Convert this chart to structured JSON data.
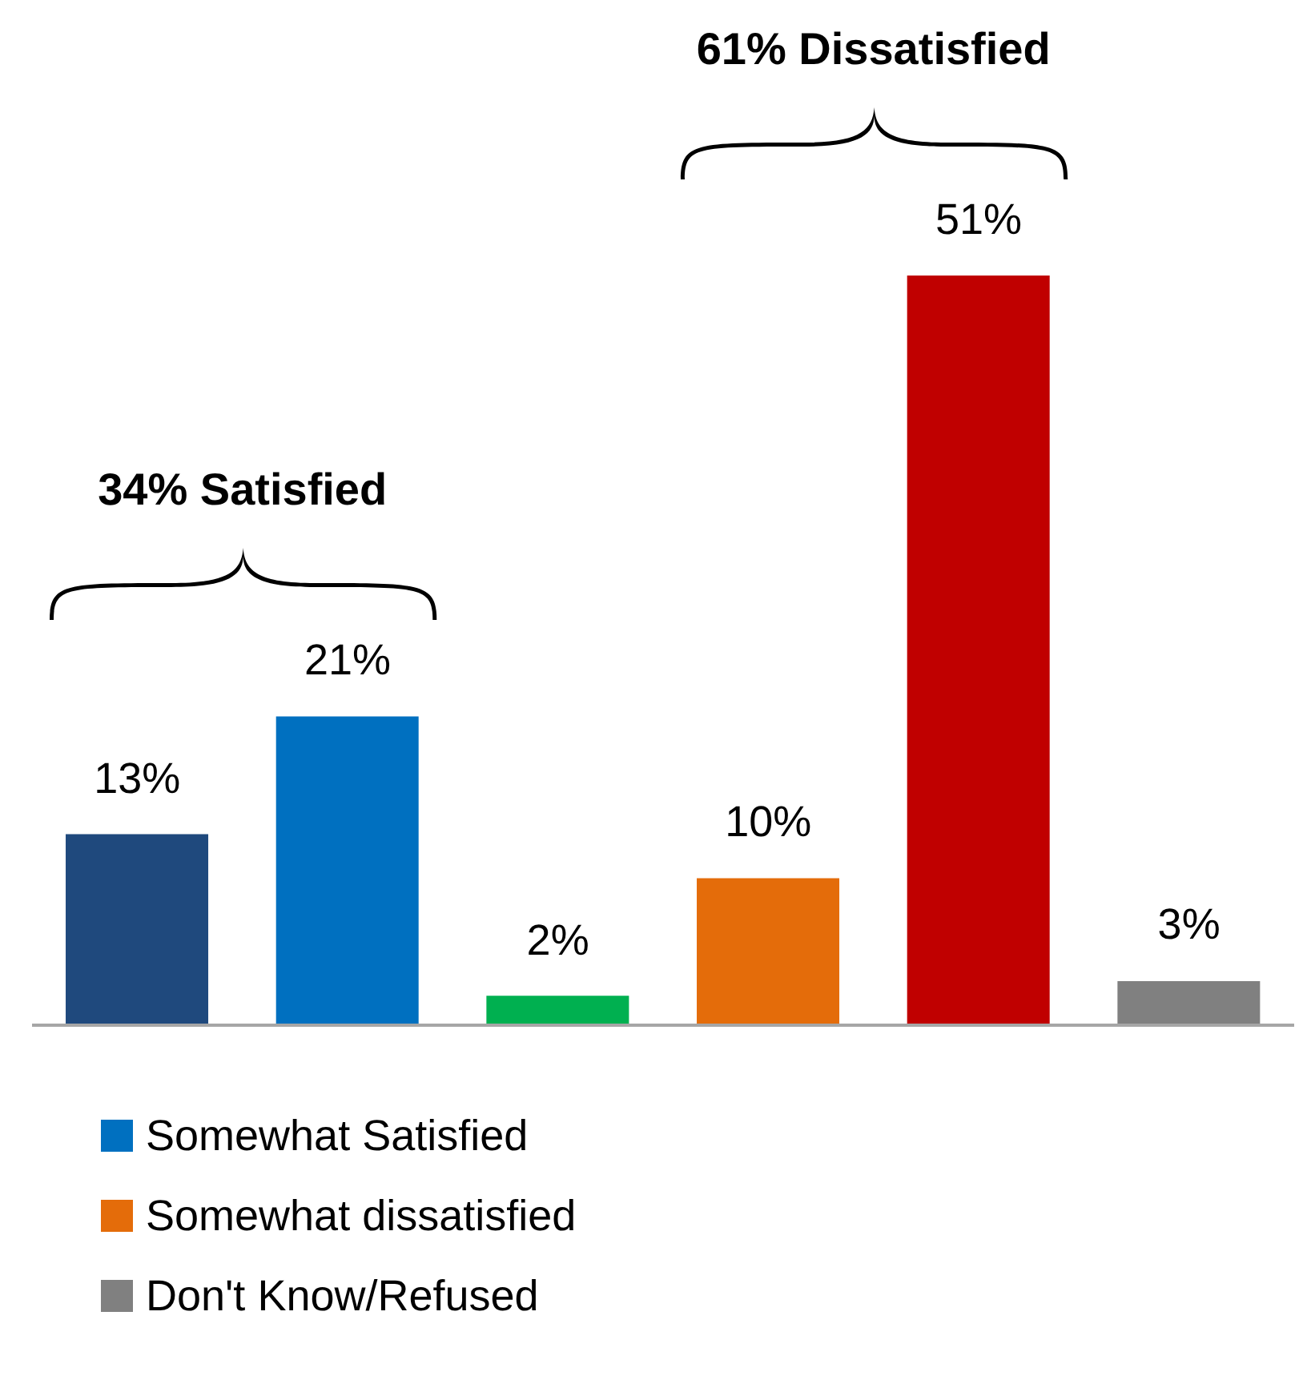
{
  "chart_data": {
    "type": "bar",
    "stacked": true,
    "legend": "bottom left",
    "categories": [
      null,
      null,
      null,
      null,
      null,
      null
    ],
    "annotations": [
      "34% Satisfied",
      "61% Dissatisfied"
    ],
    "series": [
      {
        "color": "#1f497d",
        "values": [
          13,
          null,
          null,
          null,
          null,
          null
        ],
        "value_labels": [
          "13%",
          null,
          null,
          null,
          null,
          null
        ]
      },
      {
        "name": "Somewhat Satisfied",
        "color": "#0070c0",
        "values": [
          null,
          21,
          null,
          null,
          null,
          null
        ],
        "value_labels": [
          null,
          "21%",
          null,
          null,
          null,
          null
        ]
      },
      {
        "color": "#00b050",
        "values": [
          null,
          null,
          2,
          null,
          null,
          null
        ],
        "value_labels": [
          null,
          null,
          "2%",
          null,
          null,
          null
        ]
      },
      {
        "name": "Somewhat dissatisfied",
        "color": "#e46c0a",
        "values": [
          null,
          null,
          null,
          10,
          null,
          null
        ],
        "value_labels": [
          null,
          null,
          null,
          "10%",
          null,
          null
        ]
      },
      {
        "color": "#c00000",
        "values": [
          null,
          null,
          null,
          null,
          51,
          null
        ],
        "value_labels": [
          null,
          null,
          null,
          null,
          "51%",
          null
        ]
      },
      {
        "name": "Don't Know/Refused",
        "color": "#808080",
        "values": [
          null,
          null,
          null,
          null,
          null,
          3
        ],
        "value_labels": [
          null,
          null,
          null,
          null,
          null,
          "3%"
        ]
      }
    ]
  }
}
